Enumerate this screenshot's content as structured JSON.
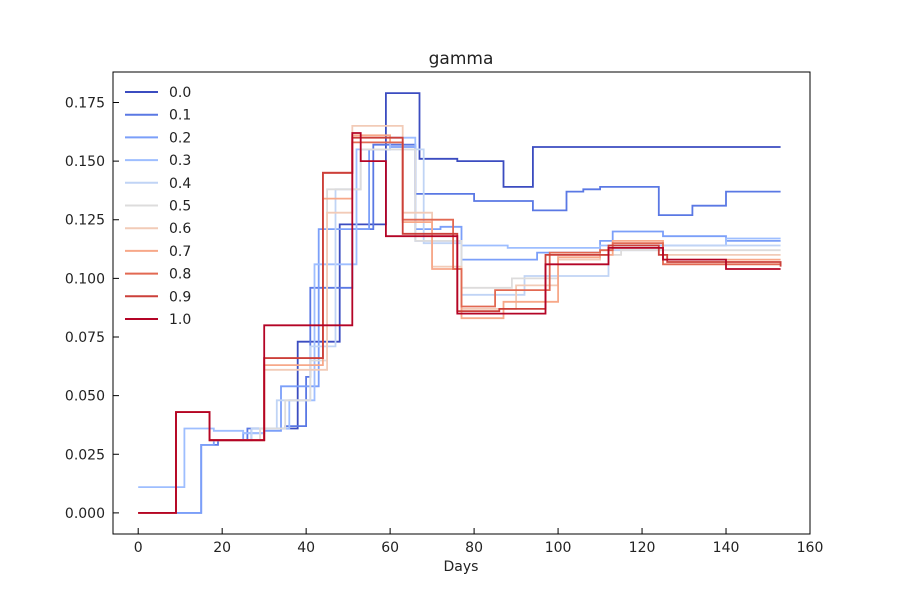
{
  "chart_data": {
    "type": "line",
    "title": "gamma",
    "xlabel": "Days",
    "ylabel": "",
    "xlim": [
      -6,
      160
    ],
    "ylim": [
      -0.009,
      0.188
    ],
    "xticks": [
      0,
      20,
      40,
      60,
      80,
      100,
      120,
      140,
      160
    ],
    "yticks": [
      0.0,
      0.025,
      0.05,
      0.075,
      0.1,
      0.125,
      0.15,
      0.175
    ],
    "grid": false,
    "legend_position": "top-left",
    "step": "post",
    "series": [
      {
        "name": "0.0",
        "color": "#3b4cc0",
        "x": [
          0,
          8,
          9,
          16,
          17,
          26,
          27,
          37,
          38,
          47,
          48,
          52,
          53,
          58,
          59,
          66,
          67,
          75,
          76,
          86,
          87,
          93,
          94,
          153
        ],
        "y": [
          0.0,
          0.0,
          0.043,
          0.043,
          0.031,
          0.031,
          0.036,
          0.036,
          0.073,
          0.073,
          0.123,
          0.123,
          0.123,
          0.123,
          0.179,
          0.179,
          0.151,
          0.151,
          0.15,
          0.15,
          0.139,
          0.139,
          0.156,
          0.156
        ]
      },
      {
        "name": "0.1",
        "color": "#5a78e4",
        "x": [
          0,
          8,
          15,
          19,
          26,
          35,
          40,
          41,
          50,
          51,
          55,
          56,
          60,
          66,
          80,
          94,
          102,
          106,
          110,
          124,
          132,
          140,
          153
        ],
        "y": [
          0.0,
          0.0,
          0.029,
          0.031,
          0.036,
          0.037,
          0.058,
          0.096,
          0.096,
          0.121,
          0.121,
          0.157,
          0.157,
          0.136,
          0.133,
          0.129,
          0.137,
          0.138,
          0.139,
          0.127,
          0.131,
          0.137,
          0.137
        ]
      },
      {
        "name": "0.2",
        "color": "#7b9ff9",
        "x": [
          0,
          8,
          15,
          18,
          25,
          30,
          34,
          43,
          52,
          55,
          60,
          66,
          72,
          77,
          85,
          95,
          110,
          113,
          125,
          140,
          153
        ],
        "y": [
          0.0,
          0.0,
          0.029,
          0.031,
          0.034,
          0.035,
          0.054,
          0.121,
          0.121,
          0.155,
          0.156,
          0.121,
          0.122,
          0.108,
          0.108,
          0.111,
          0.116,
          0.12,
          0.118,
          0.116,
          0.116
        ]
      },
      {
        "name": "0.3",
        "color": "#9ebeff",
        "x": [
          0,
          8,
          11,
          18,
          25,
          30,
          36,
          42,
          48,
          52,
          60,
          66,
          77,
          88,
          93,
          110,
          140,
          153
        ],
        "y": [
          0.011,
          0.011,
          0.036,
          0.035,
          0.034,
          0.036,
          0.048,
          0.106,
          0.106,
          0.155,
          0.16,
          0.116,
          0.114,
          0.113,
          0.113,
          0.114,
          0.117,
          0.117
        ]
      },
      {
        "name": "0.4",
        "color": "#c0d4f5",
        "x": [
          0,
          8,
          9,
          16,
          17,
          26,
          27,
          32,
          33,
          40,
          41,
          46,
          47,
          50,
          53,
          64,
          68,
          76,
          77,
          90,
          92,
          100,
          112,
          115,
          125,
          153
        ],
        "y": [
          0.0,
          0.0,
          0.043,
          0.043,
          0.031,
          0.031,
          0.036,
          0.036,
          0.048,
          0.048,
          0.071,
          0.071,
          0.138,
          0.138,
          0.155,
          0.155,
          0.115,
          0.115,
          0.093,
          0.093,
          0.101,
          0.101,
          0.112,
          0.112,
          0.114,
          0.114
        ]
      },
      {
        "name": "0.5",
        "color": "#dddcdc",
        "x": [
          0,
          8,
          9,
          16,
          17,
          26,
          29,
          33,
          35,
          40,
          41,
          44,
          45,
          50,
          53,
          60,
          66,
          76,
          77,
          86,
          89,
          100,
          115,
          130,
          153
        ],
        "y": [
          0.0,
          0.0,
          0.043,
          0.043,
          0.031,
          0.031,
          0.036,
          0.036,
          0.048,
          0.048,
          0.065,
          0.065,
          0.138,
          0.138,
          0.155,
          0.155,
          0.116,
          0.116,
          0.096,
          0.096,
          0.1,
          0.11,
          0.112,
          0.112,
          0.112
        ]
      },
      {
        "name": "0.6",
        "color": "#f2cbb7",
        "x": [
          0,
          8,
          9,
          16,
          17,
          26,
          29,
          30,
          44,
          45,
          50,
          51,
          55,
          58,
          62,
          63,
          68,
          70,
          76,
          77,
          86,
          90,
          100,
          110,
          113,
          125,
          153
        ],
        "y": [
          0.0,
          0.0,
          0.043,
          0.043,
          0.031,
          0.031,
          0.031,
          0.061,
          0.061,
          0.128,
          0.128,
          0.165,
          0.165,
          0.165,
          0.165,
          0.128,
          0.128,
          0.105,
          0.105,
          0.087,
          0.087,
          0.097,
          0.108,
          0.112,
          0.113,
          0.11,
          0.11
        ]
      },
      {
        "name": "0.7",
        "color": "#f7a889",
        "x": [
          0,
          8,
          9,
          16,
          17,
          26,
          29,
          30,
          43,
          44,
          50,
          51,
          56,
          60,
          62,
          63,
          67,
          70,
          76,
          77,
          84,
          87,
          97,
          100,
          110,
          113,
          125,
          153
        ],
        "y": [
          0.0,
          0.0,
          0.043,
          0.043,
          0.031,
          0.031,
          0.031,
          0.063,
          0.063,
          0.134,
          0.134,
          0.161,
          0.161,
          0.158,
          0.158,
          0.124,
          0.124,
          0.104,
          0.104,
          0.083,
          0.083,
          0.09,
          0.09,
          0.109,
          0.11,
          0.116,
          0.108,
          0.108
        ]
      },
      {
        "name": "0.8",
        "color": "#e26952",
        "x": [
          0,
          8,
          9,
          16,
          17,
          26,
          29,
          30,
          43,
          44,
          50,
          51,
          58,
          60,
          62,
          63,
          70,
          75,
          77,
          85,
          97,
          98,
          110,
          113,
          125,
          153
        ],
        "y": [
          0.0,
          0.0,
          0.043,
          0.043,
          0.031,
          0.031,
          0.031,
          0.066,
          0.066,
          0.145,
          0.145,
          0.158,
          0.158,
          0.158,
          0.158,
          0.125,
          0.125,
          0.104,
          0.088,
          0.095,
          0.095,
          0.111,
          0.112,
          0.115,
          0.106,
          0.106
        ]
      },
      {
        "name": "0.9",
        "color": "#cc403a",
        "x": [
          0,
          8,
          9,
          16,
          17,
          26,
          29,
          30,
          43,
          44,
          50,
          51,
          58,
          60,
          62,
          63,
          74,
          76,
          77,
          86,
          96,
          97,
          111,
          112,
          124,
          126,
          153
        ],
        "y": [
          0.0,
          0.0,
          0.043,
          0.043,
          0.031,
          0.031,
          0.031,
          0.066,
          0.066,
          0.145,
          0.145,
          0.16,
          0.16,
          0.16,
          0.16,
          0.119,
          0.119,
          0.086,
          0.086,
          0.087,
          0.087,
          0.11,
          0.11,
          0.114,
          0.11,
          0.107,
          0.105
        ]
      },
      {
        "name": "1.0",
        "color": "#b40426",
        "x": [
          0,
          8,
          9,
          16,
          17,
          26,
          29,
          30,
          43,
          44,
          50,
          51,
          52,
          53,
          58,
          59,
          75,
          76,
          96,
          97,
          111,
          112,
          124,
          125,
          140,
          153
        ],
        "y": [
          0.0,
          0.0,
          0.043,
          0.043,
          0.031,
          0.031,
          0.031,
          0.08,
          0.08,
          0.08,
          0.08,
          0.162,
          0.162,
          0.15,
          0.15,
          0.118,
          0.118,
          0.085,
          0.085,
          0.106,
          0.106,
          0.113,
          0.113,
          0.108,
          0.104,
          0.104
        ]
      }
    ]
  }
}
